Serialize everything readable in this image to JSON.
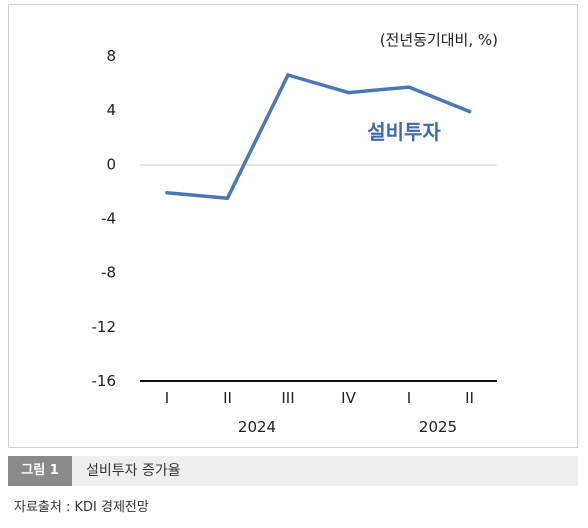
{
  "figure": {
    "label": "그림 1",
    "title": "설비투자 증가율",
    "source": "자료출처 : KDI 경제전망"
  },
  "chart_data": {
    "type": "line",
    "unit_label": "(전년동기대비, %)",
    "series_label": "설비투자",
    "x_ticks": [
      "I",
      "II",
      "III",
      "IV",
      "I",
      "II"
    ],
    "year_labels": [
      "2024",
      "2025"
    ],
    "y_ticks": [
      "8",
      "4",
      "0",
      "-4",
      "-8",
      "-12",
      "-16"
    ],
    "ylim": [
      -16,
      8
    ],
    "series": [
      {
        "values": [
          -2.1,
          -2.5,
          6.6,
          5.3,
          5.7,
          3.9
        ]
      }
    ],
    "grid": false,
    "colors": {
      "line": "#4a78b5",
      "label": "#3d6aaa",
      "zero": "#c8c8c8",
      "axis": "#111111"
    }
  }
}
